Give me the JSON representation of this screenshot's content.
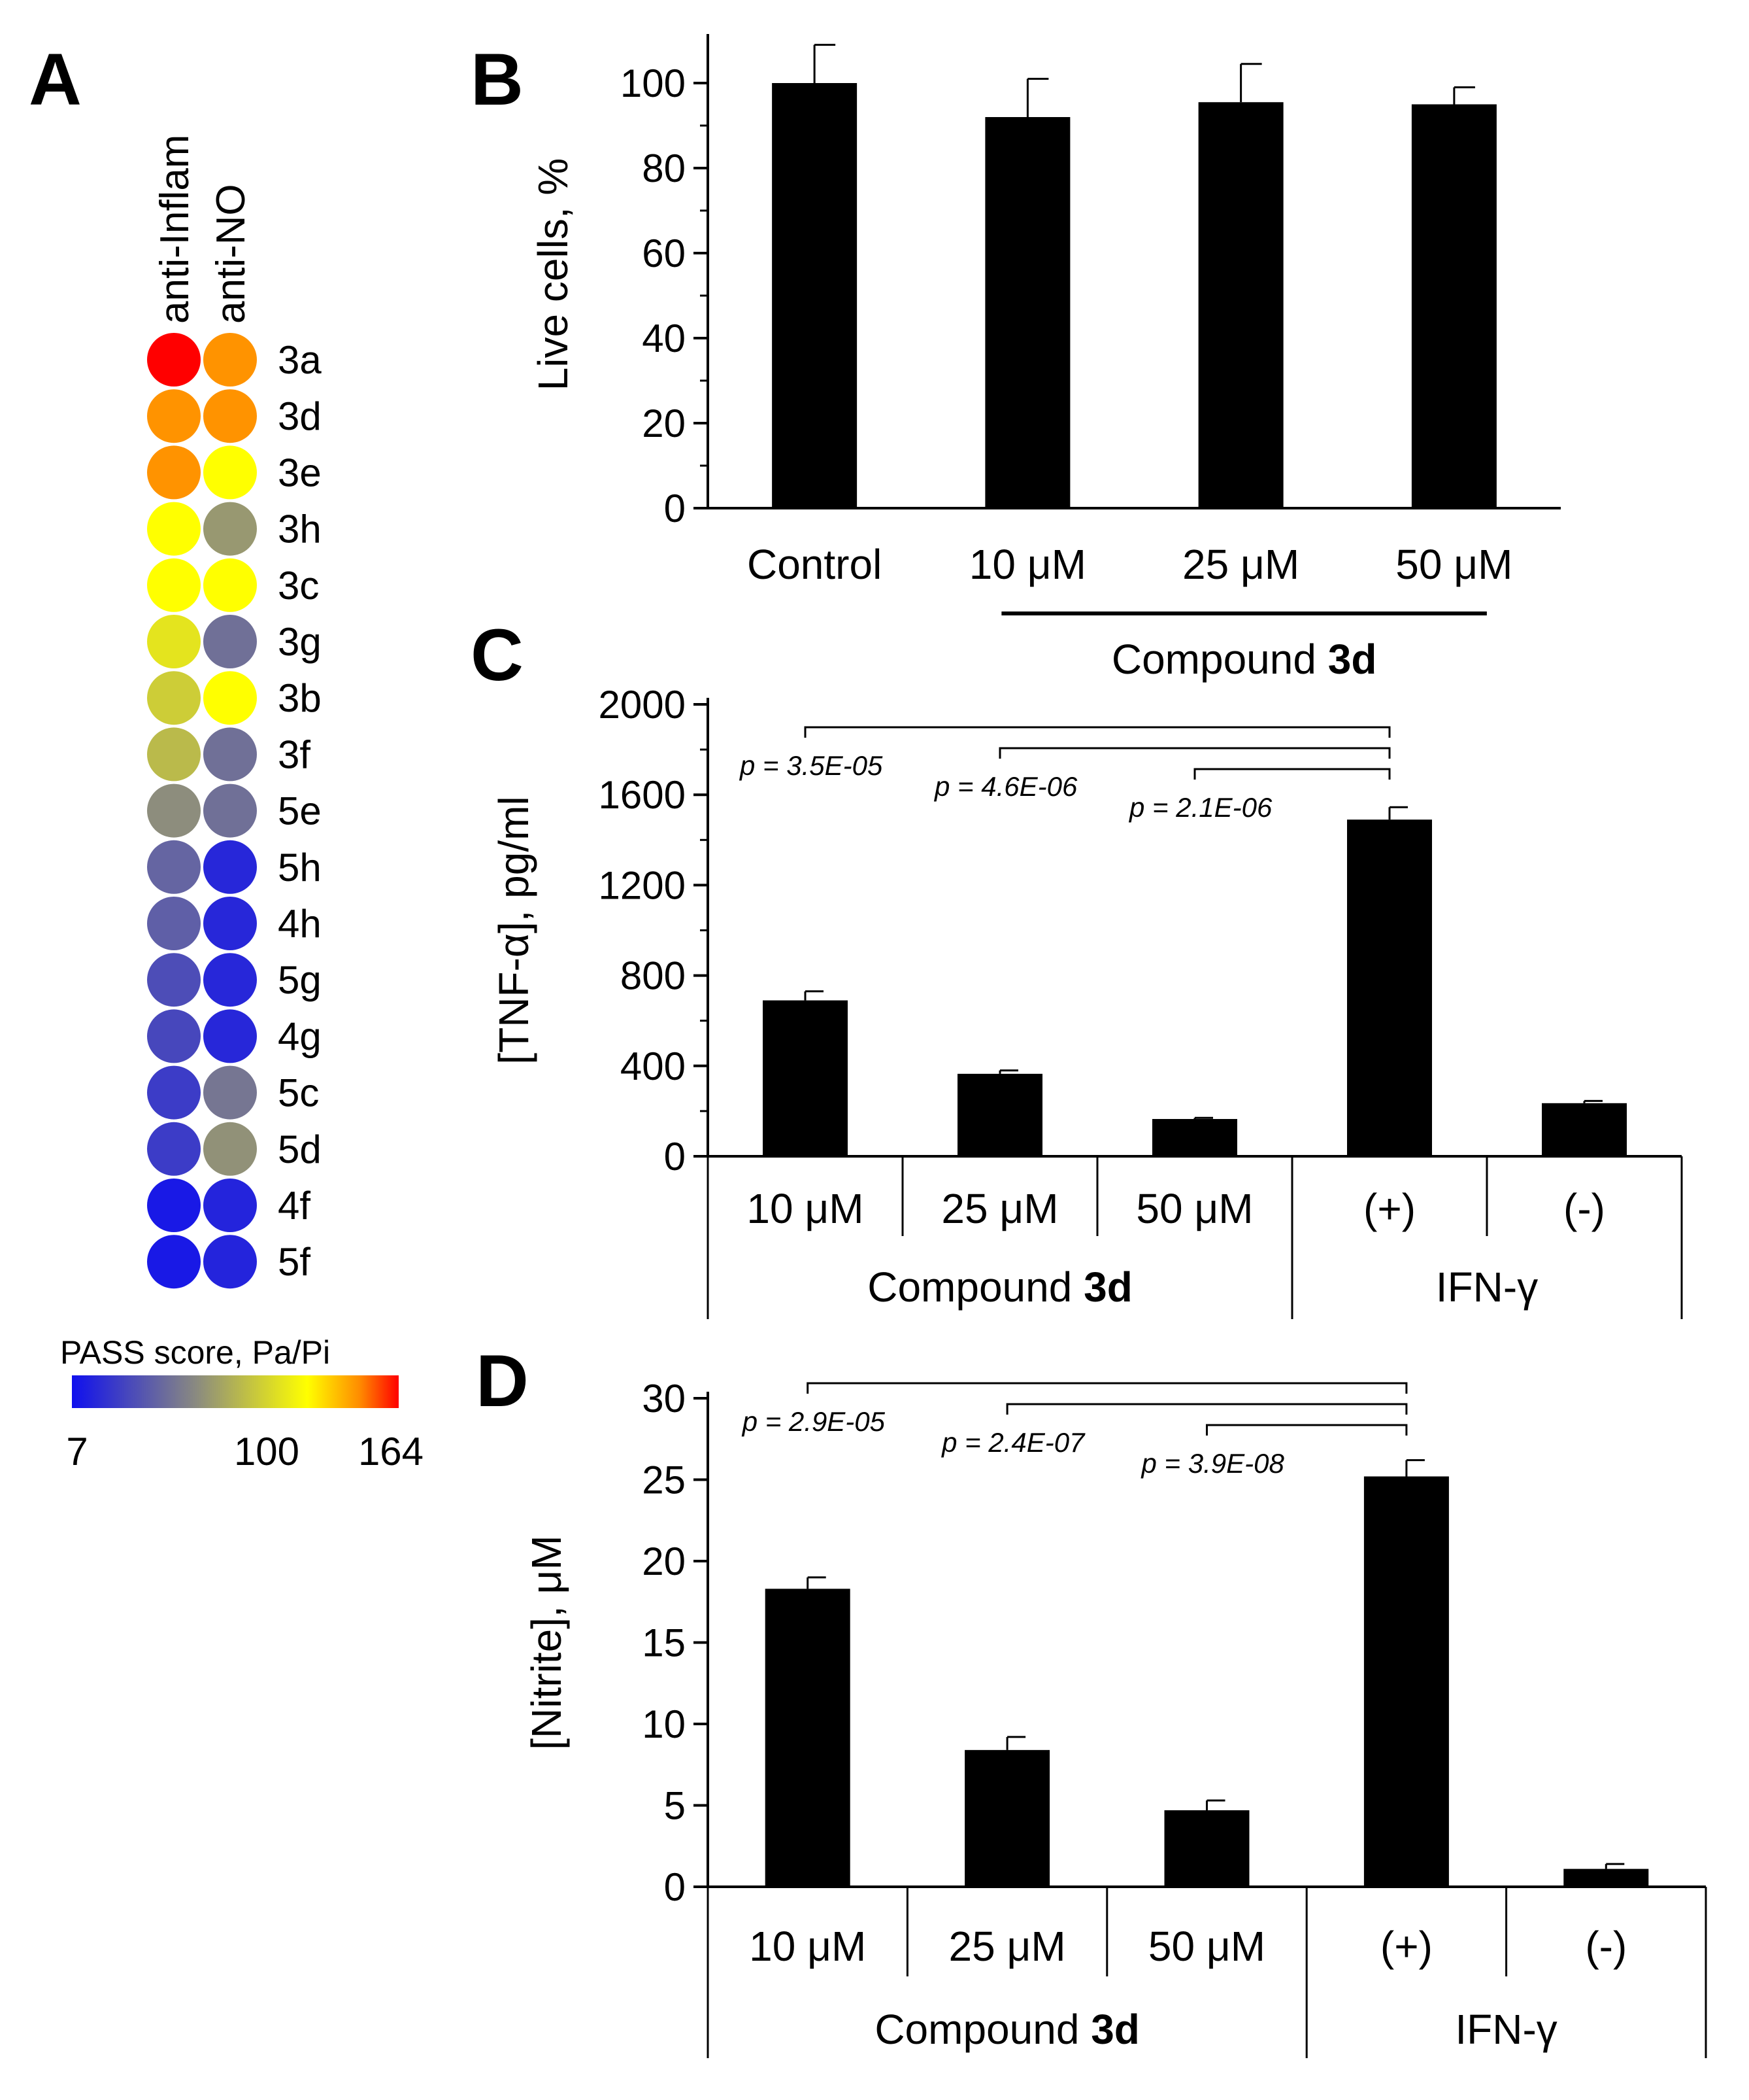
{
  "chart_data": [
    {
      "panel": "A",
      "type": "heatmap",
      "columns": [
        "anti-Inflam",
        "anti-NO"
      ],
      "rows": [
        "3a",
        "3d",
        "3e",
        "3h",
        "3c",
        "3g",
        "3b",
        "3f",
        "5e",
        "5h",
        "4h",
        "5g",
        "4g",
        "5c",
        "5d",
        "4f",
        "5f"
      ],
      "values": [
        [
          164,
          130
        ],
        [
          130,
          130
        ],
        [
          130,
          100
        ],
        [
          100,
          55
        ],
        [
          100,
          100
        ],
        [
          88,
          40
        ],
        [
          78,
          100
        ],
        [
          70,
          40
        ],
        [
          50,
          40
        ],
        [
          36,
          15
        ],
        [
          34,
          15
        ],
        [
          28,
          15
        ],
        [
          26,
          15
        ],
        [
          22,
          42
        ],
        [
          22,
          52
        ],
        [
          10,
          14
        ],
        [
          10,
          14
        ]
      ],
      "colorbar": {
        "title": "PASS score, Pa/Pi",
        "min": 7,
        "mid": 100,
        "max": 164,
        "tick_labels": [
          "7",
          "100",
          "164"
        ],
        "colors": [
          "#1010ee",
          "#8a8a80",
          "#ffff00",
          "#ff8c00",
          "#ff0000"
        ]
      }
    },
    {
      "panel": "B",
      "type": "bar",
      "categories": [
        "Control",
        "10 μM",
        "25 μM",
        "50 μM"
      ],
      "values": [
        100,
        92,
        95.5,
        95
      ],
      "errors": [
        9,
        9,
        9,
        4
      ],
      "ylabel": "Live cells, %",
      "ylim": [
        0,
        110
      ],
      "yticks": [
        0,
        20,
        40,
        60,
        80,
        100
      ],
      "group_label": {
        "text": "Compound ",
        "bold": "3d"
      }
    },
    {
      "panel": "C",
      "type": "bar",
      "categories": [
        "10 μM",
        "25 μM",
        "50 μM",
        "(+)",
        "(-)"
      ],
      "values": [
        690,
        365,
        165,
        1490,
        235
      ],
      "errors": [
        40,
        15,
        5,
        55,
        10
      ],
      "ylabel": "[TNF-α], pg/ml",
      "ylim": [
        0,
        2000
      ],
      "yticks": [
        0,
        400,
        800,
        1200,
        1600,
        2000
      ],
      "groups": [
        {
          "text": "Compound ",
          "bold": "3d",
          "span": [
            0,
            2
          ]
        },
        {
          "text": "IFN-γ",
          "bold": "",
          "span": [
            3,
            4
          ]
        }
      ],
      "comparisons": [
        {
          "from": 0,
          "to": 3,
          "label": "p = 3.5E-05"
        },
        {
          "from": 1,
          "to": 3,
          "label": "p = 4.6E-06"
        },
        {
          "from": 2,
          "to": 3,
          "label": "p = 2.1E-06"
        }
      ]
    },
    {
      "panel": "D",
      "type": "bar",
      "categories": [
        "10 μM",
        "25 μM",
        "50 μM",
        "(+)",
        "(-)"
      ],
      "values": [
        18.3,
        8.4,
        4.7,
        25.2,
        1.1
      ],
      "errors": [
        0.7,
        0.8,
        0.6,
        1.0,
        0.3
      ],
      "ylabel": "[Nitrite], μM",
      "ylim": [
        0,
        30
      ],
      "yticks": [
        0,
        5,
        10,
        15,
        20,
        25,
        30
      ],
      "groups": [
        {
          "text": "Compound ",
          "bold": "3d",
          "span": [
            0,
            2
          ]
        },
        {
          "text": "IFN-γ",
          "bold": "",
          "span": [
            3,
            4
          ]
        }
      ],
      "comparisons": [
        {
          "from": 0,
          "to": 3,
          "label": "p = 2.9E-05"
        },
        {
          "from": 1,
          "to": 3,
          "label": "p = 2.4E-07"
        },
        {
          "from": 2,
          "to": 3,
          "label": "p = 3.9E-08"
        }
      ]
    }
  ]
}
